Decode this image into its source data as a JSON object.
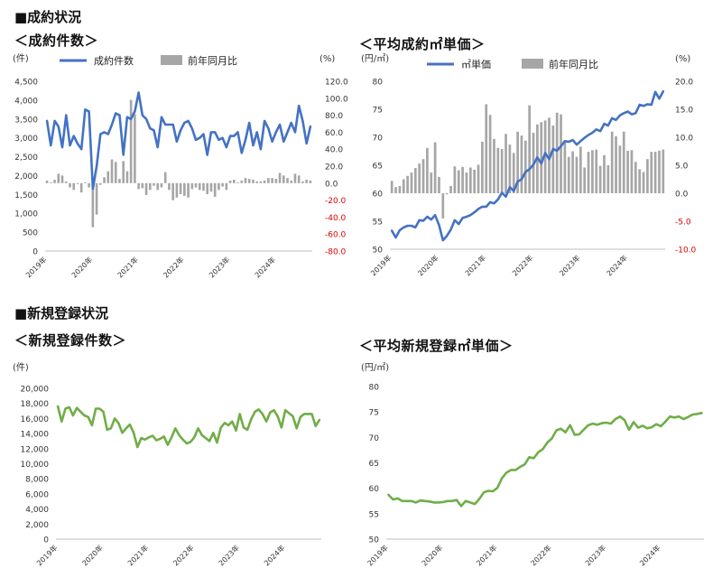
{
  "sections": {
    "contract": "■成約状況",
    "registration": "■新規登録状況"
  },
  "colors": {
    "blue": "#4472C4",
    "green": "#70AD47",
    "gray": "#A6A6A6",
    "negative": "#E00000",
    "axis": "#444444",
    "grid": "#D9D9D9"
  },
  "chart_data": [
    {
      "type": "bar",
      "title": "＜成約件数＞",
      "left_unit": "(件)",
      "right_unit": "(%)",
      "legend": [
        "成約件数",
        "前年同月比"
      ],
      "left_ticks": [
        "4,500",
        "4,000",
        "3,500",
        "3,000",
        "2,500",
        "2,000",
        "1,500",
        "1,000",
        "500",
        "0"
      ],
      "right_ticks": [
        "120.0",
        "100.0",
        "80.0",
        "60.0",
        "40.0",
        "20.0",
        "0.0",
        "-20.0",
        "-40.0",
        "-60.0",
        "-80.0"
      ],
      "x_ticks": [
        "2019年",
        "2020年",
        "2021年",
        "2022年",
        "2023年",
        "2024年"
      ],
      "ylim_left": [
        0,
        4500
      ],
      "ylim_right": [
        -80,
        120
      ],
      "series": [
        {
          "name": "成約件数",
          "type": "line",
          "values": [
            3450,
            2800,
            3450,
            3300,
            2750,
            3600,
            2800,
            3050,
            2850,
            2700,
            3750,
            3700,
            1650,
            2250,
            3100,
            3150,
            3100,
            3350,
            3650,
            3600,
            2550,
            3550,
            3500,
            3700,
            4200,
            3600,
            3500,
            3250,
            3200,
            2750,
            3550,
            3350,
            3350,
            3350,
            2900,
            3200,
            3400,
            3450,
            3250,
            2950,
            3000,
            3100,
            2550,
            3150,
            3150,
            2950,
            3000,
            2750,
            3050,
            3050,
            3150,
            2600,
            2950,
            3400,
            2800,
            3150,
            2700,
            3450,
            3250,
            2900,
            3150,
            3350,
            2900,
            3150,
            3400,
            3150,
            3850,
            3450,
            2850,
            3300
          ]
        },
        {
          "name": "前年同月比",
          "type": "bar",
          "axis": "right",
          "values": [
            3,
            1,
            4,
            11,
            9,
            2,
            -5,
            -8,
            -1,
            -11,
            1,
            -5,
            -52,
            -37,
            -2,
            7,
            14,
            28,
            25,
            5,
            26,
            14,
            98,
            81,
            -7,
            -6,
            -14,
            -8,
            -3,
            -8,
            -5,
            13,
            -8,
            -20,
            -17,
            -13,
            -15,
            -17,
            -7,
            -5,
            -8,
            -9,
            -13,
            -10,
            -16,
            -8,
            -4,
            -8,
            3,
            4,
            1,
            3,
            6,
            5,
            4,
            2,
            2,
            3,
            6,
            6,
            5,
            12,
            9,
            6,
            3,
            11,
            9,
            2,
            4,
            3
          ]
        }
      ]
    },
    {
      "type": "bar",
      "title": "＜平均成約㎡単価＞",
      "left_unit": "(円/㎡)",
      "right_unit": "(%)",
      "legend": [
        "㎡単価",
        "前年同月比"
      ],
      "left_ticks": [
        "80",
        "75",
        "70",
        "65",
        "60",
        "55",
        "50"
      ],
      "right_ticks": [
        "20.0",
        "15.0",
        "10.0",
        "5.0",
        "0.0",
        "-5.0",
        "-10.0"
      ],
      "x_ticks": [
        "2019年",
        "2020年",
        "2021年",
        "2022年",
        "2023年",
        "2024年"
      ],
      "ylim_left": [
        50,
        80
      ],
      "ylim_right": [
        -10,
        20
      ],
      "series": [
        {
          "name": "㎡単価",
          "type": "line",
          "values": [
            53.3,
            52.1,
            53.4,
            53.9,
            54.2,
            54.2,
            53.9,
            55.2,
            55.1,
            55.8,
            55.3,
            56.1,
            54.3,
            51.6,
            52.4,
            53.5,
            55.2,
            54.5,
            55.6,
            55.8,
            56.1,
            56.6,
            57.2,
            57.6,
            57.6,
            58.4,
            58.2,
            58.9,
            60.1,
            59.4,
            61.1,
            60.4,
            62.1,
            62.5,
            63.8,
            64.3,
            65.1,
            66.4,
            65.3,
            67.2,
            66.1,
            67.9,
            67.6,
            68.4,
            69.3,
            69.2,
            69.5,
            68.7,
            69.3,
            69.9,
            70.4,
            70.8,
            71.4,
            71.1,
            72.4,
            72.1,
            73.4,
            73.1,
            73.9,
            74.3,
            74.6,
            74.1,
            74.3,
            75.8,
            75.6,
            75.9,
            75.8,
            78.1,
            76.9,
            78.2
          ]
        },
        {
          "name": "前年同月比",
          "type": "bar",
          "axis": "right",
          "values": [
            2.2,
            1.1,
            1.3,
            2.5,
            3.1,
            3.7,
            4.5,
            5.3,
            6.1,
            8.1,
            3.7,
            9.1,
            2.9,
            -4.5,
            -0.2,
            1.3,
            4.8,
            4.1,
            4.7,
            3.7,
            4.6,
            4.2,
            5.1,
            9.2,
            15.9,
            14.0,
            9.7,
            8.1,
            7.9,
            10.6,
            8.7,
            7.2,
            11.0,
            10.3,
            9.4,
            15.7,
            10.8,
            12.3,
            12.7,
            13.0,
            13.5,
            12.1,
            14.4,
            14.1,
            9.3,
            6.5,
            7.5,
            6.5,
            8.3,
            4.6,
            7.4,
            7.7,
            7.8,
            4.9,
            6.8,
            5.0,
            11.0,
            10.2,
            8.5,
            11.0,
            7.6,
            7.7,
            5.6,
            4.3,
            3.8,
            6.1,
            7.4,
            7.4,
            7.6,
            7.8
          ]
        }
      ]
    },
    {
      "type": "line",
      "title": "＜新規登録件数＞",
      "left_unit": "(件)",
      "left_ticks": [
        "20,000",
        "18,000",
        "16,000",
        "14,000",
        "12,000",
        "10,000",
        "8,000",
        "6,000",
        "4,000",
        "2,000",
        "0"
      ],
      "x_ticks": [
        "2019年",
        "2020年",
        "2021年",
        "2022年",
        "2023年",
        "2024年"
      ],
      "ylim": [
        0,
        20000
      ],
      "series": [
        {
          "name": "新規登録件数",
          "values": [
            17600,
            15600,
            17300,
            17500,
            16400,
            17400,
            16900,
            16400,
            16200,
            15100,
            17300,
            17300,
            16900,
            14500,
            14700,
            16000,
            15400,
            14100,
            14700,
            15200,
            14100,
            12200,
            13400,
            13200,
            13500,
            13700,
            13100,
            13300,
            13600,
            12500,
            13500,
            14700,
            13800,
            13200,
            12700,
            12900,
            13500,
            14700,
            13800,
            13400,
            13000,
            14100,
            12800,
            14800,
            15400,
            15100,
            15600,
            14400,
            16600,
            14800,
            14500,
            15900,
            16900,
            17200,
            16600,
            15600,
            16800,
            17100,
            16300,
            14800,
            17100,
            16700,
            16300,
            14700,
            16200,
            16600,
            16600,
            16600,
            15000,
            15800
          ]
        }
      ]
    },
    {
      "type": "line",
      "title": "＜平均新規登録㎡単価＞",
      "left_unit": "(円/㎡)",
      "left_ticks": [
        "80",
        "75",
        "70",
        "65",
        "60",
        "55",
        "50"
      ],
      "x_ticks": [
        "2019年",
        "2020年",
        "2021年",
        "2022年",
        "2023年",
        "2024年"
      ],
      "ylim": [
        50,
        80
      ],
      "series": [
        {
          "name": "平均新規登録㎡単価",
          "values": [
            58.7,
            57.8,
            58.0,
            57.5,
            57.5,
            57.5,
            57.2,
            57.6,
            57.5,
            57.4,
            57.2,
            57.2,
            57.3,
            57.5,
            57.5,
            57.7,
            56.5,
            57.5,
            57.2,
            56.9,
            57.9,
            59.2,
            59.5,
            59.4,
            60.1,
            62.0,
            63.1,
            63.6,
            63.6,
            64.2,
            64.7,
            66.1,
            65.9,
            67.1,
            67.7,
            69.0,
            69.8,
            71.4,
            71.7,
            71.0,
            72.4,
            70.5,
            70.6,
            71.5,
            72.4,
            72.7,
            72.5,
            72.8,
            72.9,
            72.7,
            73.6,
            74.1,
            73.4,
            71.5,
            73.0,
            71.9,
            72.3,
            71.8,
            72.0,
            72.6,
            72.2,
            73.1,
            74.1,
            73.9,
            74.1,
            73.6,
            74.0,
            74.5,
            74.6,
            74.8
          ]
        }
      ]
    }
  ]
}
